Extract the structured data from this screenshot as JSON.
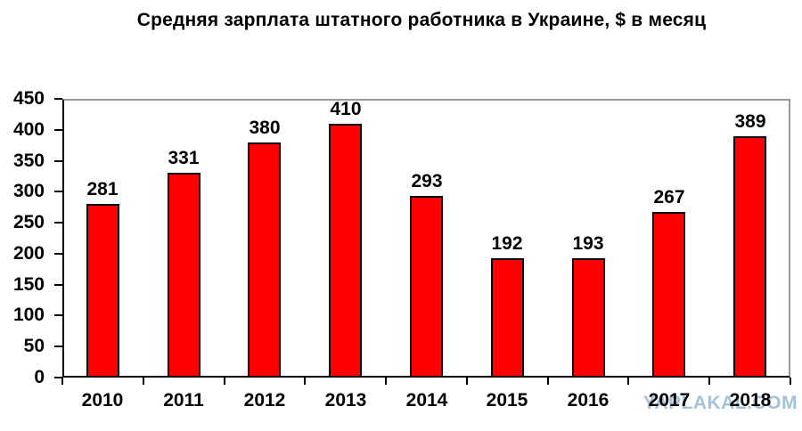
{
  "title": "Средняя зарплата штатного работника в Украине, $ в месяц",
  "watermark": "YAPLAKAL.COM",
  "colors": {
    "bar_fill": "#ff0000",
    "bar_border": "#000000",
    "axis": "#000000",
    "plot_border": "#9a9a9a",
    "text": "#000000",
    "watermark": "#a3c2da",
    "background": "#ffffff"
  },
  "chart_data": {
    "type": "bar",
    "title": "Средняя зарплата штатного работника в Украине, $ в месяц",
    "categories": [
      "2010",
      "2011",
      "2012",
      "2013",
      "2014",
      "2015",
      "2016",
      "2017",
      "2018"
    ],
    "values": [
      281,
      331,
      380,
      410,
      293,
      192,
      193,
      267,
      389
    ],
    "xlabel": "",
    "ylabel": "",
    "ylim": [
      0,
      450
    ],
    "yticks": [
      0,
      50,
      100,
      150,
      200,
      250,
      300,
      350,
      400,
      450
    ],
    "grid": false,
    "legend": false,
    "data_labels": true
  }
}
